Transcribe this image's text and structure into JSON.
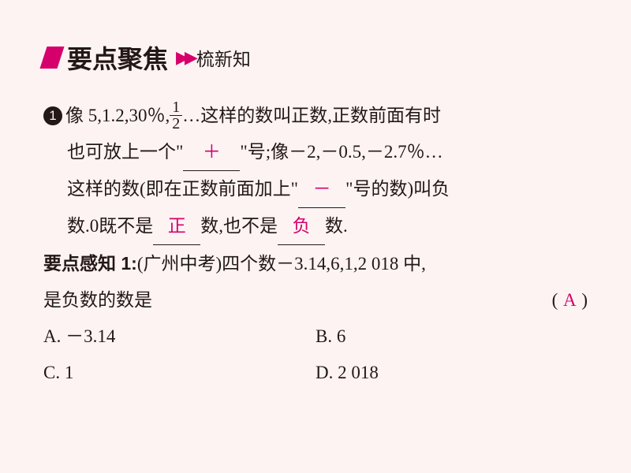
{
  "header": {
    "title": "要点聚焦",
    "arrows": "▶▶",
    "subtitle": "梳新知"
  },
  "item1": {
    "bullet": "1",
    "l1_a": "像 5,1.2,30％,",
    "frac_num": "1",
    "frac_den": "2",
    "l1_b": "…这样的数叫正数,正数前面有时",
    "l2_a": "也可放上一个\"",
    "blank1": "＋",
    "l2_b": "\"号;像－2,－0.5,－2.7％…",
    "l3_a": "这样的数(即在正数前面加上\"",
    "blank2": "－",
    "l3_b": "\"号的数)叫负",
    "l4_a": "数.0既不是",
    "blank3": "正",
    "l4_b": "数,也不是",
    "blank4": "负",
    "l4_c": "数."
  },
  "sense1": {
    "label": "要点感知 1:",
    "src": "(广州中考)四个数－3.14,6,1,2 018 中,",
    "q2": "是负数的数是",
    "paren_l": "(",
    "answer": "A",
    "paren_r": ")",
    "choices": {
      "A": "A. －3.14",
      "B": "B. 6",
      "C": "C. 1",
      "D": "D. 2 018"
    }
  },
  "style": {
    "accent": "#d6006c",
    "bg": "#fdf3f3",
    "text": "#231815",
    "body_fontsize": 23,
    "title_fontsize": 32
  }
}
